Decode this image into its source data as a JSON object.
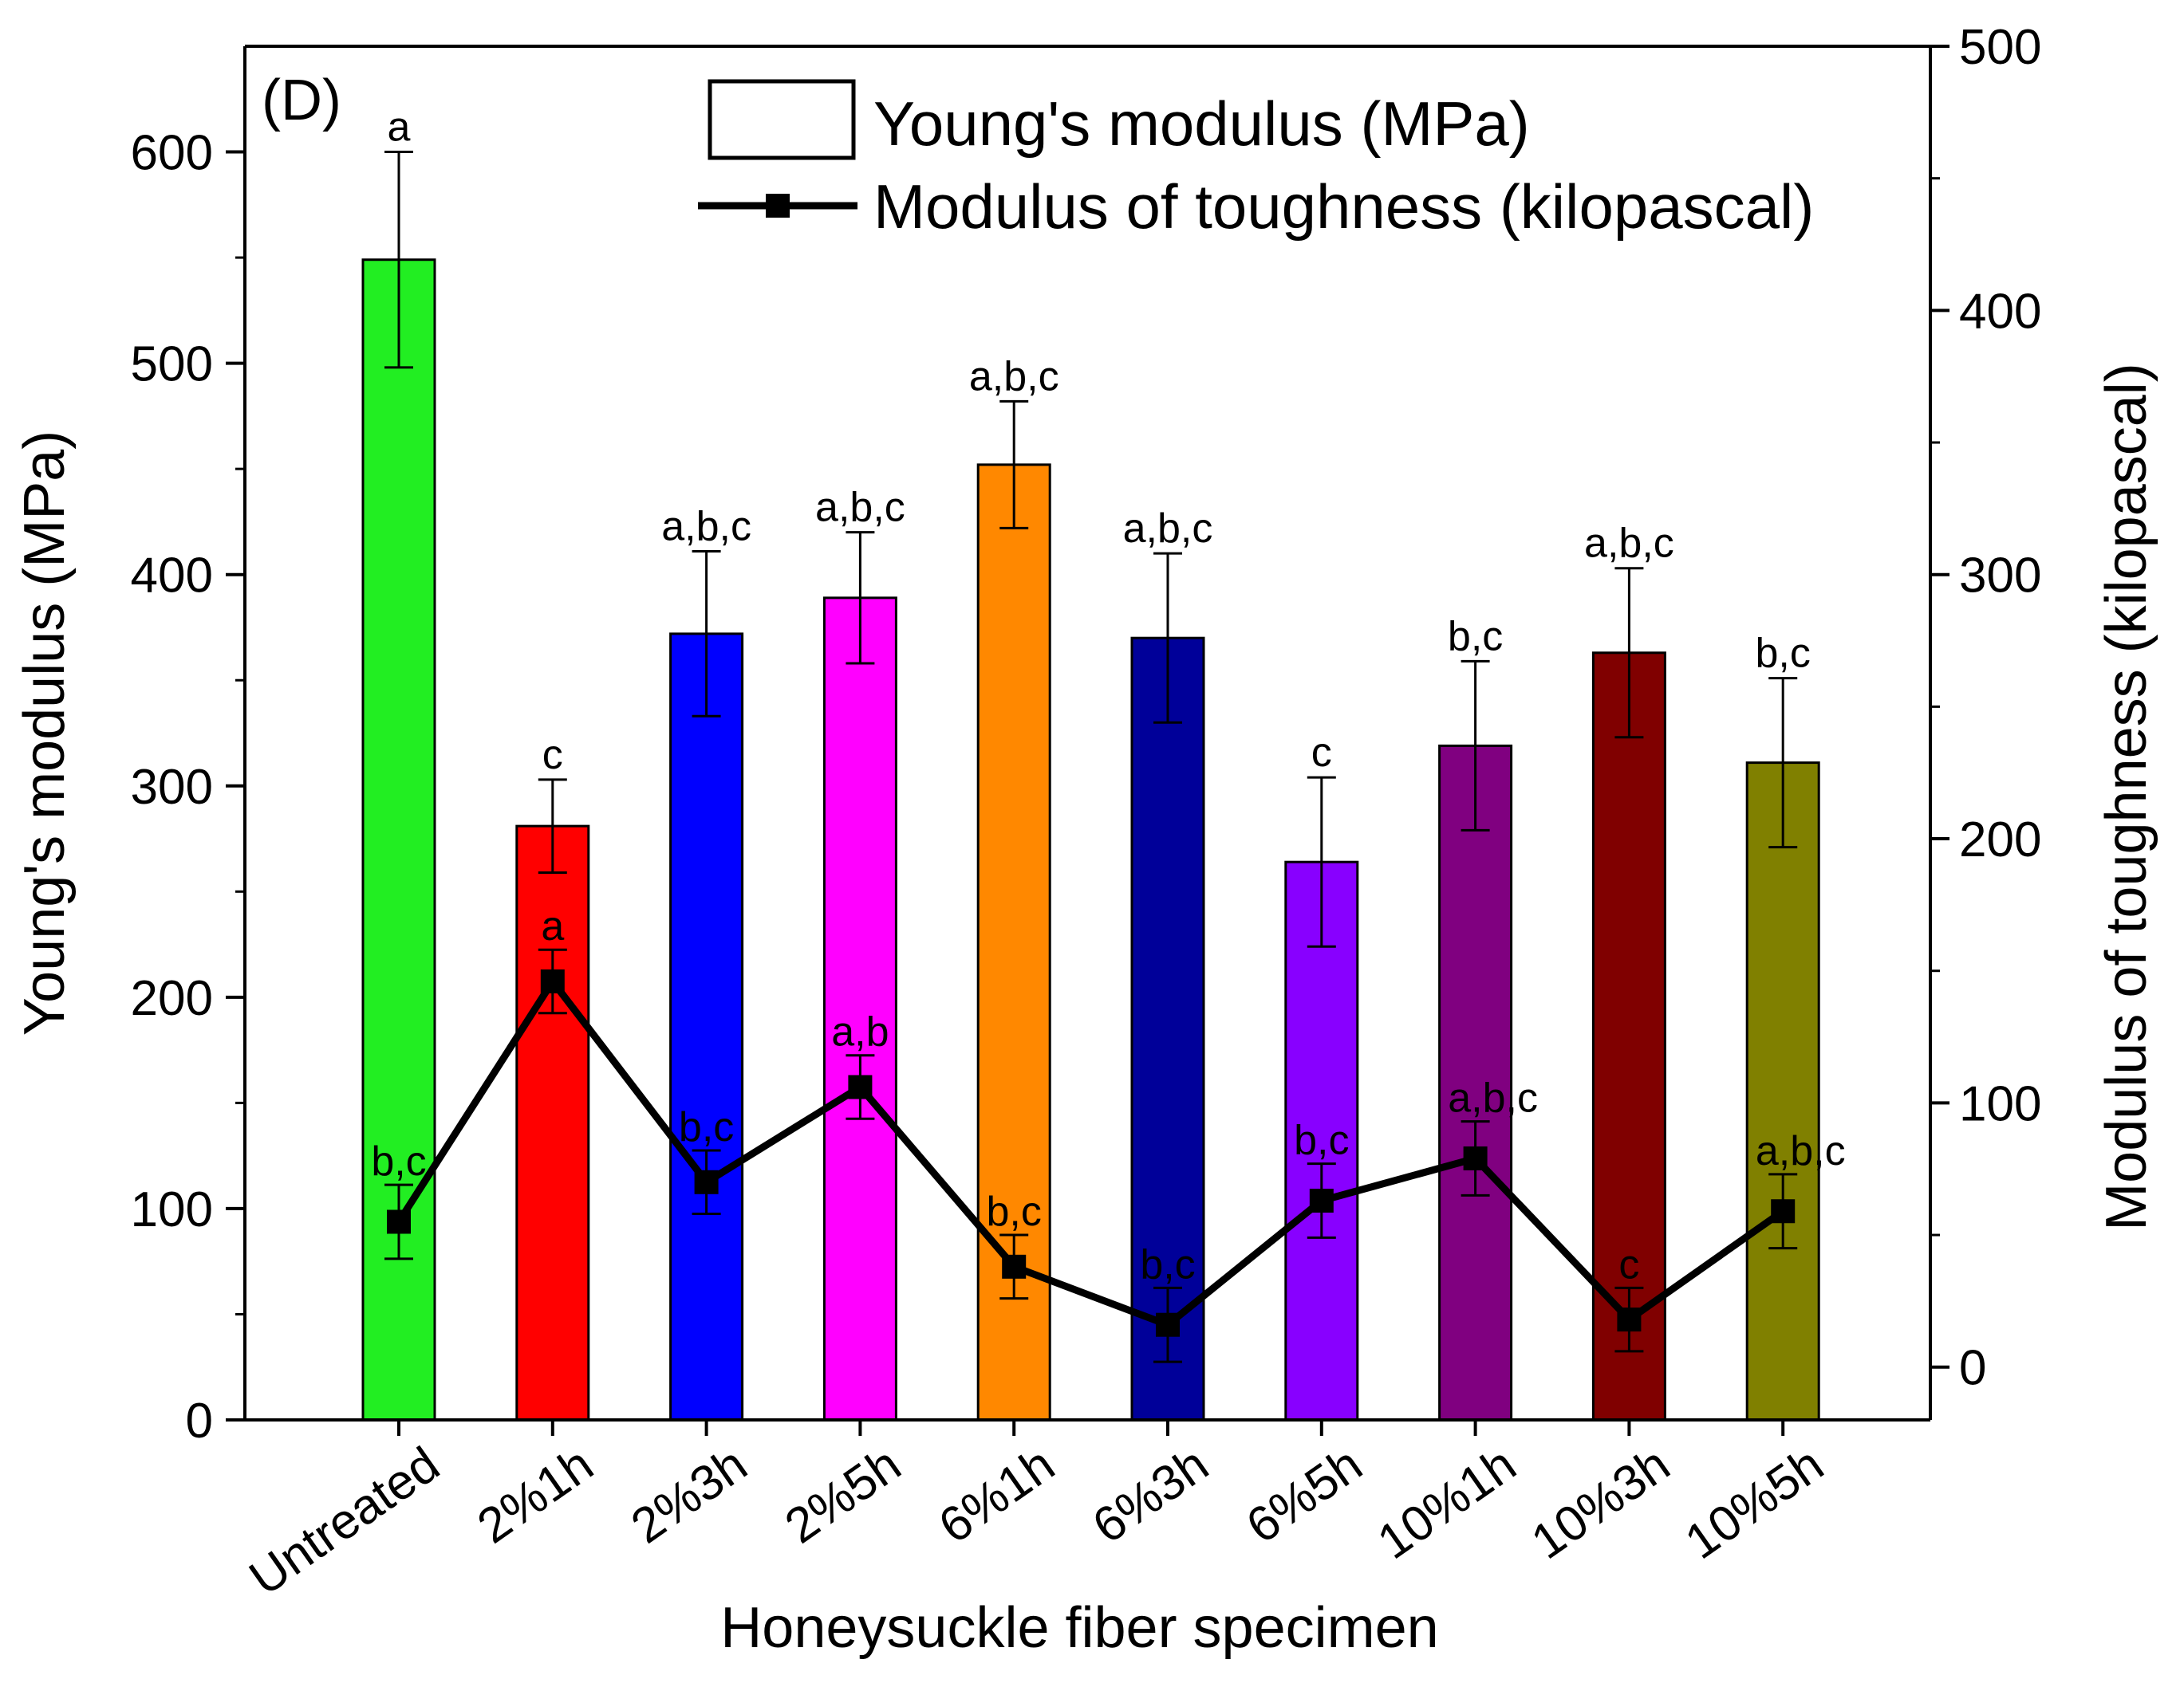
{
  "chart_data": {
    "type": "bar",
    "panel_label": "(D)",
    "xlabel": "Honeysuckle fiber specimen",
    "ylabel": "Young's modulus (MPa)",
    "y2label": "Modulus of toughness (kilopascal)",
    "ylim": [
      0,
      650
    ],
    "y2lim": [
      -20,
      500
    ],
    "yticks": [
      0,
      100,
      200,
      300,
      400,
      500,
      600
    ],
    "y2ticks": [
      0,
      100,
      200,
      300,
      400,
      500
    ],
    "categories": [
      "Untreated",
      "2%1h",
      "2%3h",
      "2%5h",
      "6%1h",
      "6%3h",
      "6%5h",
      "10%1h",
      "10%3h",
      "10%5h"
    ],
    "legend": {
      "position": "top-right",
      "entries": [
        "Young's modulus (MPa)",
        "Modulus of toughness (kilopascal)"
      ]
    },
    "series": [
      {
        "name": "Young's modulus (MPa)",
        "type": "bar",
        "axis": "left",
        "values": [
          549,
          281,
          372,
          389,
          452,
          370,
          264,
          319,
          363,
          311
        ],
        "errors": [
          51,
          22,
          39,
          31,
          30,
          40,
          40,
          40,
          40,
          40
        ],
        "colors": [
          "#22ee22",
          "#ff0000",
          "#0000ff",
          "#ff00ff",
          "#ff8800",
          "#000099",
          "#8800ff",
          "#800080",
          "#800000",
          "#808000"
        ],
        "significance": [
          "a",
          "c",
          "a,b,c",
          "a,b,c",
          "a,b,c",
          "a,b,c",
          "c",
          "b,c",
          "a,b,c",
          "b,c"
        ]
      },
      {
        "name": "Modulus of toughness (kilopascal)",
        "type": "line",
        "axis": "right",
        "values": [
          55,
          146,
          70,
          106,
          38,
          16,
          63,
          79,
          18,
          59
        ],
        "errors": [
          14,
          12,
          12,
          12,
          12,
          14,
          14,
          14,
          12,
          14
        ],
        "color": "#000000",
        "marker": "square",
        "significance": [
          "b,c",
          "a",
          "b,c",
          "a,b",
          "b,c",
          "b,c",
          "b,c",
          "a,b,c",
          "c",
          "a,b,c"
        ]
      }
    ]
  }
}
